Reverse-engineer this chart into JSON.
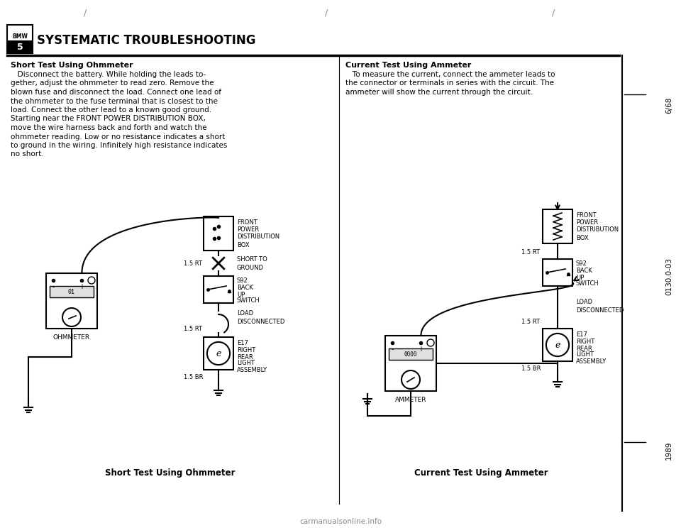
{
  "title": "SYSTEMATIC TROUBLESHOOTING",
  "page_ref_top": "6/68",
  "page_ref_mid": "0130.0-03",
  "page_ref_bot": "1989",
  "left_section_title": "Short Test Using Ohmmeter",
  "left_body_lines": [
    "   Disconnect the battery. While holding the leads to-",
    "gether, adjust the ohmmeter to read zero. Remove the",
    "blown fuse and disconnect the load. Connect one lead of",
    "the ohmmeter to the fuse terminal that is closest to the",
    "load. Connect the other lead to a known good ground.",
    "Starting near the FRONT POWER DISTRIBUTION BOX,",
    "move the wire harness back and forth and watch the",
    "ohmmeter reading. Low or no resistance indicates a short",
    "to ground in the wiring. Infinitely high resistance indicates",
    "no short."
  ],
  "right_section_title": "Current Test Using Ammeter",
  "right_body_lines": [
    "   To measure the current, connect the ammeter leads to",
    "the connector or terminals in series with the circuit. The",
    "ammeter will show the current through the circuit."
  ],
  "left_diagram_caption": "Short Test Using Ohmmeter",
  "right_diagram_caption": "Current Test Using Ammeter",
  "background_color": "#ffffff",
  "text_color": "#000000",
  "watermark": "carmanualsonline.info"
}
